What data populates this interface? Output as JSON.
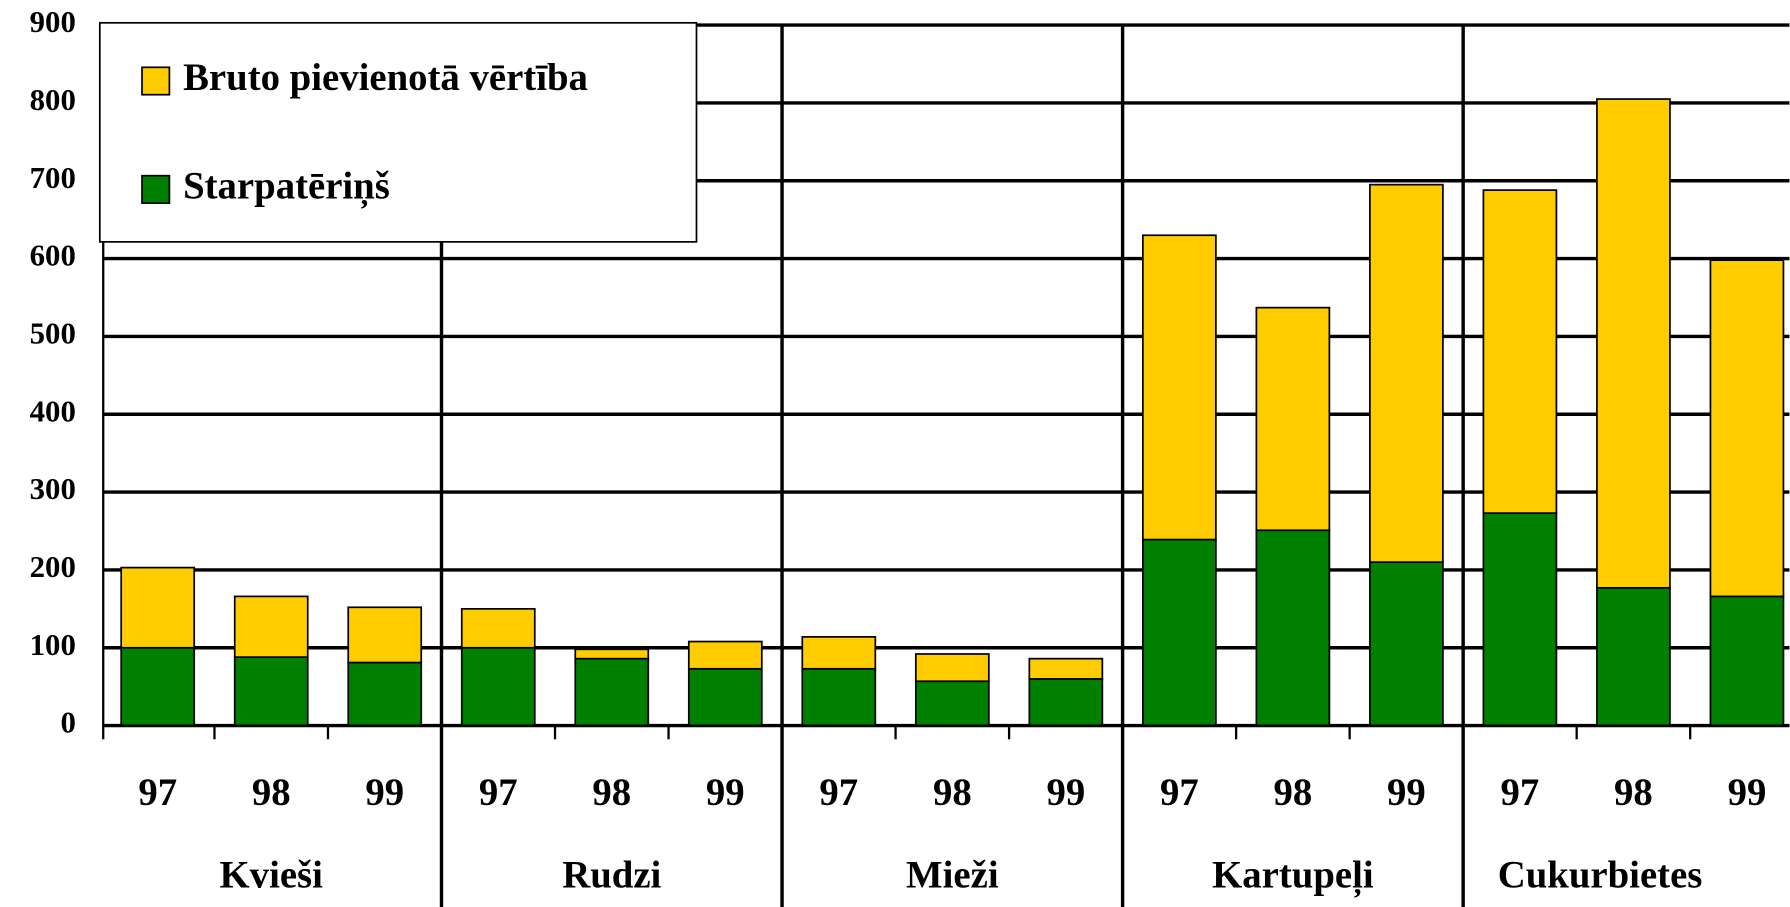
{
  "chart_data": {
    "type": "stacked-bar",
    "categories": [
      "97",
      "98",
      "99",
      "97",
      "98",
      "99",
      "97",
      "98",
      "99",
      "97",
      "98",
      "99",
      "97",
      "98",
      "99"
    ],
    "groups": [
      "Kvieši",
      "Rudzi",
      "Mieži",
      "Kartupeļi",
      "Cukurbietes"
    ],
    "series": [
      {
        "name": "Starpatēriņš",
        "color": "#008000",
        "values": [
          100,
          88,
          81,
          100,
          86,
          73,
          73,
          57,
          60,
          239,
          251,
          210,
          273,
          177,
          166
        ]
      },
      {
        "name": "Bruto pievienotā vērtība",
        "color": "#ffcc00",
        "values": [
          103,
          78,
          71,
          50,
          12,
          35,
          41,
          35,
          26,
          391,
          286,
          485,
          415,
          628,
          432
        ]
      }
    ],
    "ylim": [
      0,
      900
    ],
    "yticks": [
      0,
      100,
      200,
      300,
      400,
      500,
      600,
      700,
      800,
      900
    ],
    "grid": true,
    "legend": "upper left"
  }
}
